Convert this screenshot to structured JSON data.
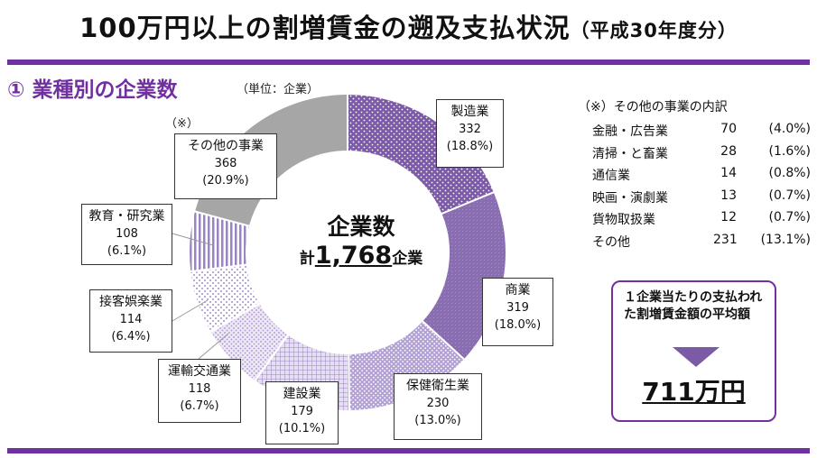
{
  "header": {
    "title_main": "100万円以上の割増賃金の遡及支払状況",
    "title_sub": "（平成30年度分）"
  },
  "section": {
    "title": "① 業種別の企業数",
    "unit": "（単位：企業）",
    "note_mark": "（※）"
  },
  "colors": {
    "accent": "#7030a0",
    "other_gray": "#a6a6a6",
    "dark_purple": "#7b5ba6",
    "mid_purple": "#9b84c2",
    "light_purple": "#c6b8de"
  },
  "chart_data": {
    "type": "pie",
    "donut": true,
    "start_angle_deg": 0,
    "direction": "clockwise",
    "center_label": "企業数",
    "total_prefix": "計",
    "total_value": "1,768",
    "total_unit": "企業",
    "slices": [
      {
        "label": "製造業",
        "value": 332,
        "value_text": "332",
        "pct": "(18.8%)",
        "pattern": "dots-dark"
      },
      {
        "label": "商業",
        "value": 319,
        "value_text": "319",
        "pct": "(18.0%)",
        "pattern": "solid-dark"
      },
      {
        "label": "保健衛生業",
        "value": 230,
        "value_text": "230",
        "pct": "(13.0%)",
        "pattern": "dots-mid"
      },
      {
        "label": "建設業",
        "value": 179,
        "value_text": "179",
        "pct": "(10.1%)",
        "pattern": "grid"
      },
      {
        "label": "運輸交通業",
        "value": 118,
        "value_text": "118",
        "pct": "(6.7%)",
        "pattern": "dots-light"
      },
      {
        "label": "接客娯楽業",
        "value": 114,
        "value_text": "114",
        "pct": "(6.4%)",
        "pattern": "dots-sparse"
      },
      {
        "label": "教育・研究業",
        "value": 108,
        "value_text": "108",
        "pct": "(6.1%)",
        "pattern": "vlines"
      },
      {
        "label": "その他の事業",
        "value": 368,
        "value_text": "368",
        "pct": "(20.9%)",
        "pattern": "gray"
      }
    ]
  },
  "breakdown": {
    "title": "（※）その他の事業の内訳",
    "rows": [
      {
        "name": "金融・広告業",
        "count": "70",
        "pct": "(4.0%)"
      },
      {
        "name": "清掃・と畜業",
        "count": "28",
        "pct": "(1.6%)"
      },
      {
        "name": "通信業",
        "count": "14",
        "pct": "(0.8%)"
      },
      {
        "name": "映画・演劇業",
        "count": "13",
        "pct": "(0.7%)"
      },
      {
        "name": "貨物取扱業",
        "count": "12",
        "pct": "(0.7%)"
      },
      {
        "name": "その他",
        "count": "231",
        "pct": "(13.1%)"
      }
    ]
  },
  "average": {
    "label": "１企業当たりの支払われた割増賃金額の平均額",
    "value": "711万円"
  }
}
